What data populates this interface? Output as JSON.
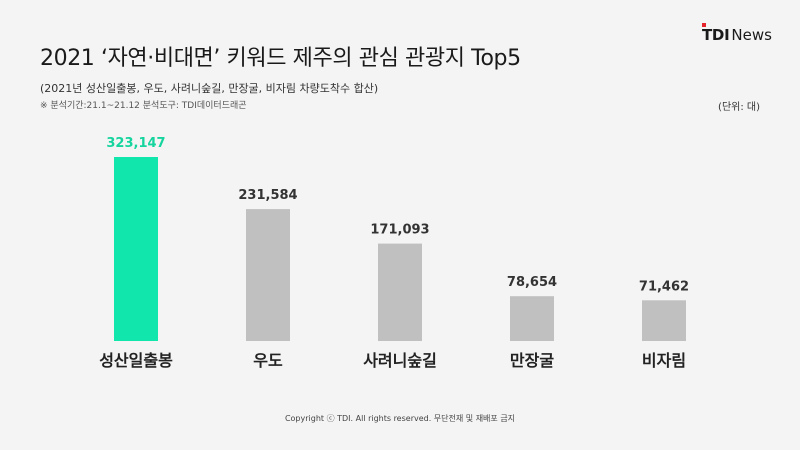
{
  "logo": {
    "mark": "TDI",
    "word": "News"
  },
  "title": "2021 ‘자연·비대면’ 키워드 제주의 관심 관광지 Top5",
  "subtitle": "(2021년 성산일출봉, 우도, 사려니숲길, 만장굴, 비자림 차량도착수 합산)",
  "source_note": "※ 분석기간:21.1~21.12 분석도구: TDI데이터드래곤",
  "unit_note": "(단위: 대)",
  "copyright": "Copyright ⓒ TDI. All rights reserved. 무단전재 및 재배포 금지",
  "colors": {
    "highlight": "#11e6ac",
    "bar": "#c0c0c0",
    "highlight_label": "#16d49e",
    "label": "#333333",
    "category": "#222222",
    "background": "#f4f4f4"
  },
  "chart_data": {
    "type": "bar",
    "title": "2021 ‘자연·비대면’ 키워드 제주의 관심 관광지 Top5",
    "xlabel": "",
    "ylabel": "",
    "unit": "대",
    "categories": [
      "성산일출봉",
      "우도",
      "사려니숲길",
      "만장굴",
      "비자림"
    ],
    "values": [
      323147,
      231584,
      171093,
      78654,
      71462
    ],
    "value_labels": [
      "323,147",
      "231,584",
      "171,093",
      "78,654",
      "71,462"
    ],
    "highlight_index": 0,
    "ylim": [
      0,
      323147
    ],
    "grid": false,
    "legend": "none"
  }
}
